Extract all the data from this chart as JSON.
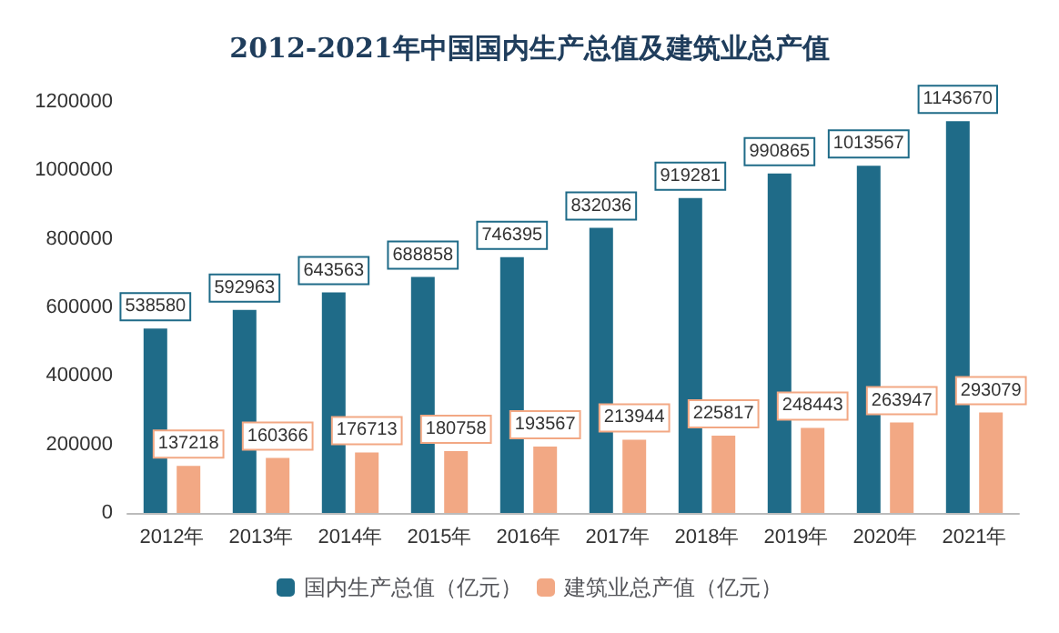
{
  "chart_data": {
    "type": "bar",
    "title": "2012-2021年中国国内生产总值及建筑业总产值",
    "categories": [
      "2012年",
      "2013年",
      "2014年",
      "2015年",
      "2016年",
      "2017年",
      "2018年",
      "2019年",
      "2020年",
      "2021年"
    ],
    "series": [
      {
        "name": "国内生产总值（亿元）",
        "color": "#1f6b88",
        "values": [
          538580,
          592963,
          643563,
          688858,
          746395,
          832036,
          919281,
          990865,
          1013567,
          1143670
        ]
      },
      {
        "name": "建筑业总产值（亿元）",
        "color": "#f2a884",
        "values": [
          137218,
          160366,
          176713,
          180758,
          193567,
          213944,
          225817,
          248443,
          263947,
          293079
        ]
      }
    ],
    "ylim": [
      0,
      1200000
    ],
    "yticks": [
      0,
      200000,
      400000,
      600000,
      800000,
      1000000,
      1200000
    ],
    "grid": false,
    "legend": "bottom",
    "data_labels": true
  }
}
